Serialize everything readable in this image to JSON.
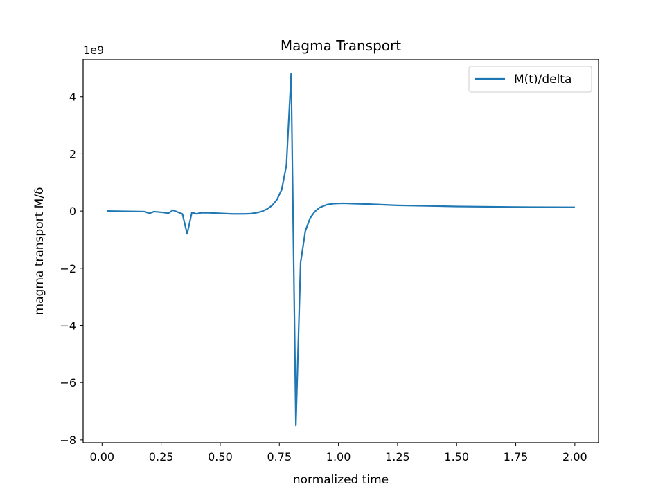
{
  "chart_data": {
    "type": "line",
    "title": "Magma Transport",
    "xlabel": "normalized time",
    "ylabel": "magma transport M/δ",
    "y_offset_label": "1e9",
    "xlim": [
      -0.08,
      2.1
    ],
    "ylim": [
      -8.1,
      5.3
    ],
    "xticks": [
      0.0,
      0.25,
      0.5,
      0.75,
      1.0,
      1.25,
      1.5,
      1.75,
      2.0
    ],
    "xtick_labels": [
      "0.00",
      "0.25",
      "0.50",
      "0.75",
      "1.00",
      "1.25",
      "1.50",
      "1.75",
      "2.00"
    ],
    "yticks": [
      -8,
      -6,
      -4,
      -2,
      0,
      2,
      4
    ],
    "ytick_labels": [
      "−8",
      "−6",
      "−4",
      "−2",
      "0",
      "2",
      "4"
    ],
    "grid": false,
    "legend_position": "top-right",
    "series": [
      {
        "name": "M(t)/delta",
        "color": "#1f77b4",
        "x": [
          0.02,
          0.18,
          0.2,
          0.22,
          0.26,
          0.28,
          0.3,
          0.33,
          0.34,
          0.36,
          0.38,
          0.4,
          0.42,
          0.45,
          0.5,
          0.55,
          0.6,
          0.63,
          0.66,
          0.68,
          0.7,
          0.72,
          0.74,
          0.76,
          0.78,
          0.8,
          0.82,
          0.84,
          0.86,
          0.88,
          0.9,
          0.92,
          0.95,
          0.98,
          1.02,
          1.1,
          1.25,
          1.5,
          1.75,
          2.0
        ],
        "y": [
          0.0,
          -0.02,
          -0.08,
          -0.02,
          -0.05,
          -0.08,
          0.03,
          -0.07,
          -0.1,
          -0.8,
          -0.05,
          -0.1,
          -0.06,
          -0.06,
          -0.08,
          -0.1,
          -0.1,
          -0.09,
          -0.05,
          0.0,
          0.08,
          0.2,
          0.4,
          0.75,
          1.6,
          4.8,
          -7.5,
          -1.8,
          -0.7,
          -0.25,
          -0.02,
          0.12,
          0.22,
          0.26,
          0.27,
          0.25,
          0.2,
          0.16,
          0.14,
          0.13
        ]
      }
    ]
  }
}
